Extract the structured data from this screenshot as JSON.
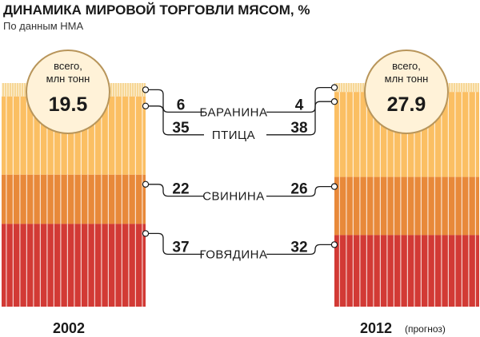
{
  "title": "ДИНАМИКА МИРОВОЙ ТОРГОВЛИ МЯСОМ, %",
  "subtitle": "По данным НМА",
  "colors": {
    "beef": "#d23a35",
    "pork": "#e8893a",
    "poultry": "#fbbf63",
    "mutton": "#f7d796",
    "stripe": "#ffffff",
    "circle_fill": "#fff2d8",
    "circle_stroke": "#b8955a",
    "text": "#1a1a1a"
  },
  "chart_data": {
    "type": "bar",
    "stacked": true,
    "categories": [
      "2002",
      "2012"
    ],
    "category_notes": [
      "",
      "(прогноз)"
    ],
    "totals": [
      {
        "label": "всего,\nмлн тонн",
        "label_lines": [
          "всего,",
          "млн тонн"
        ],
        "value": "19.5"
      },
      {
        "label": "всего,\nмлн тонн",
        "label_lines": [
          "всего,",
          "млн тонн"
        ],
        "value": "27.9"
      }
    ],
    "series": [
      {
        "name": "БАРАНИНА",
        "key": "mutton",
        "values": [
          6,
          4
        ]
      },
      {
        "name": "ПТИЦА",
        "key": "poultry",
        "values": [
          35,
          38
        ]
      },
      {
        "name": "СВИНИНА",
        "key": "pork",
        "values": [
          22,
          26
        ]
      },
      {
        "name": "ГОВЯДИНА",
        "key": "beef",
        "values": [
          37,
          32
        ]
      }
    ]
  }
}
